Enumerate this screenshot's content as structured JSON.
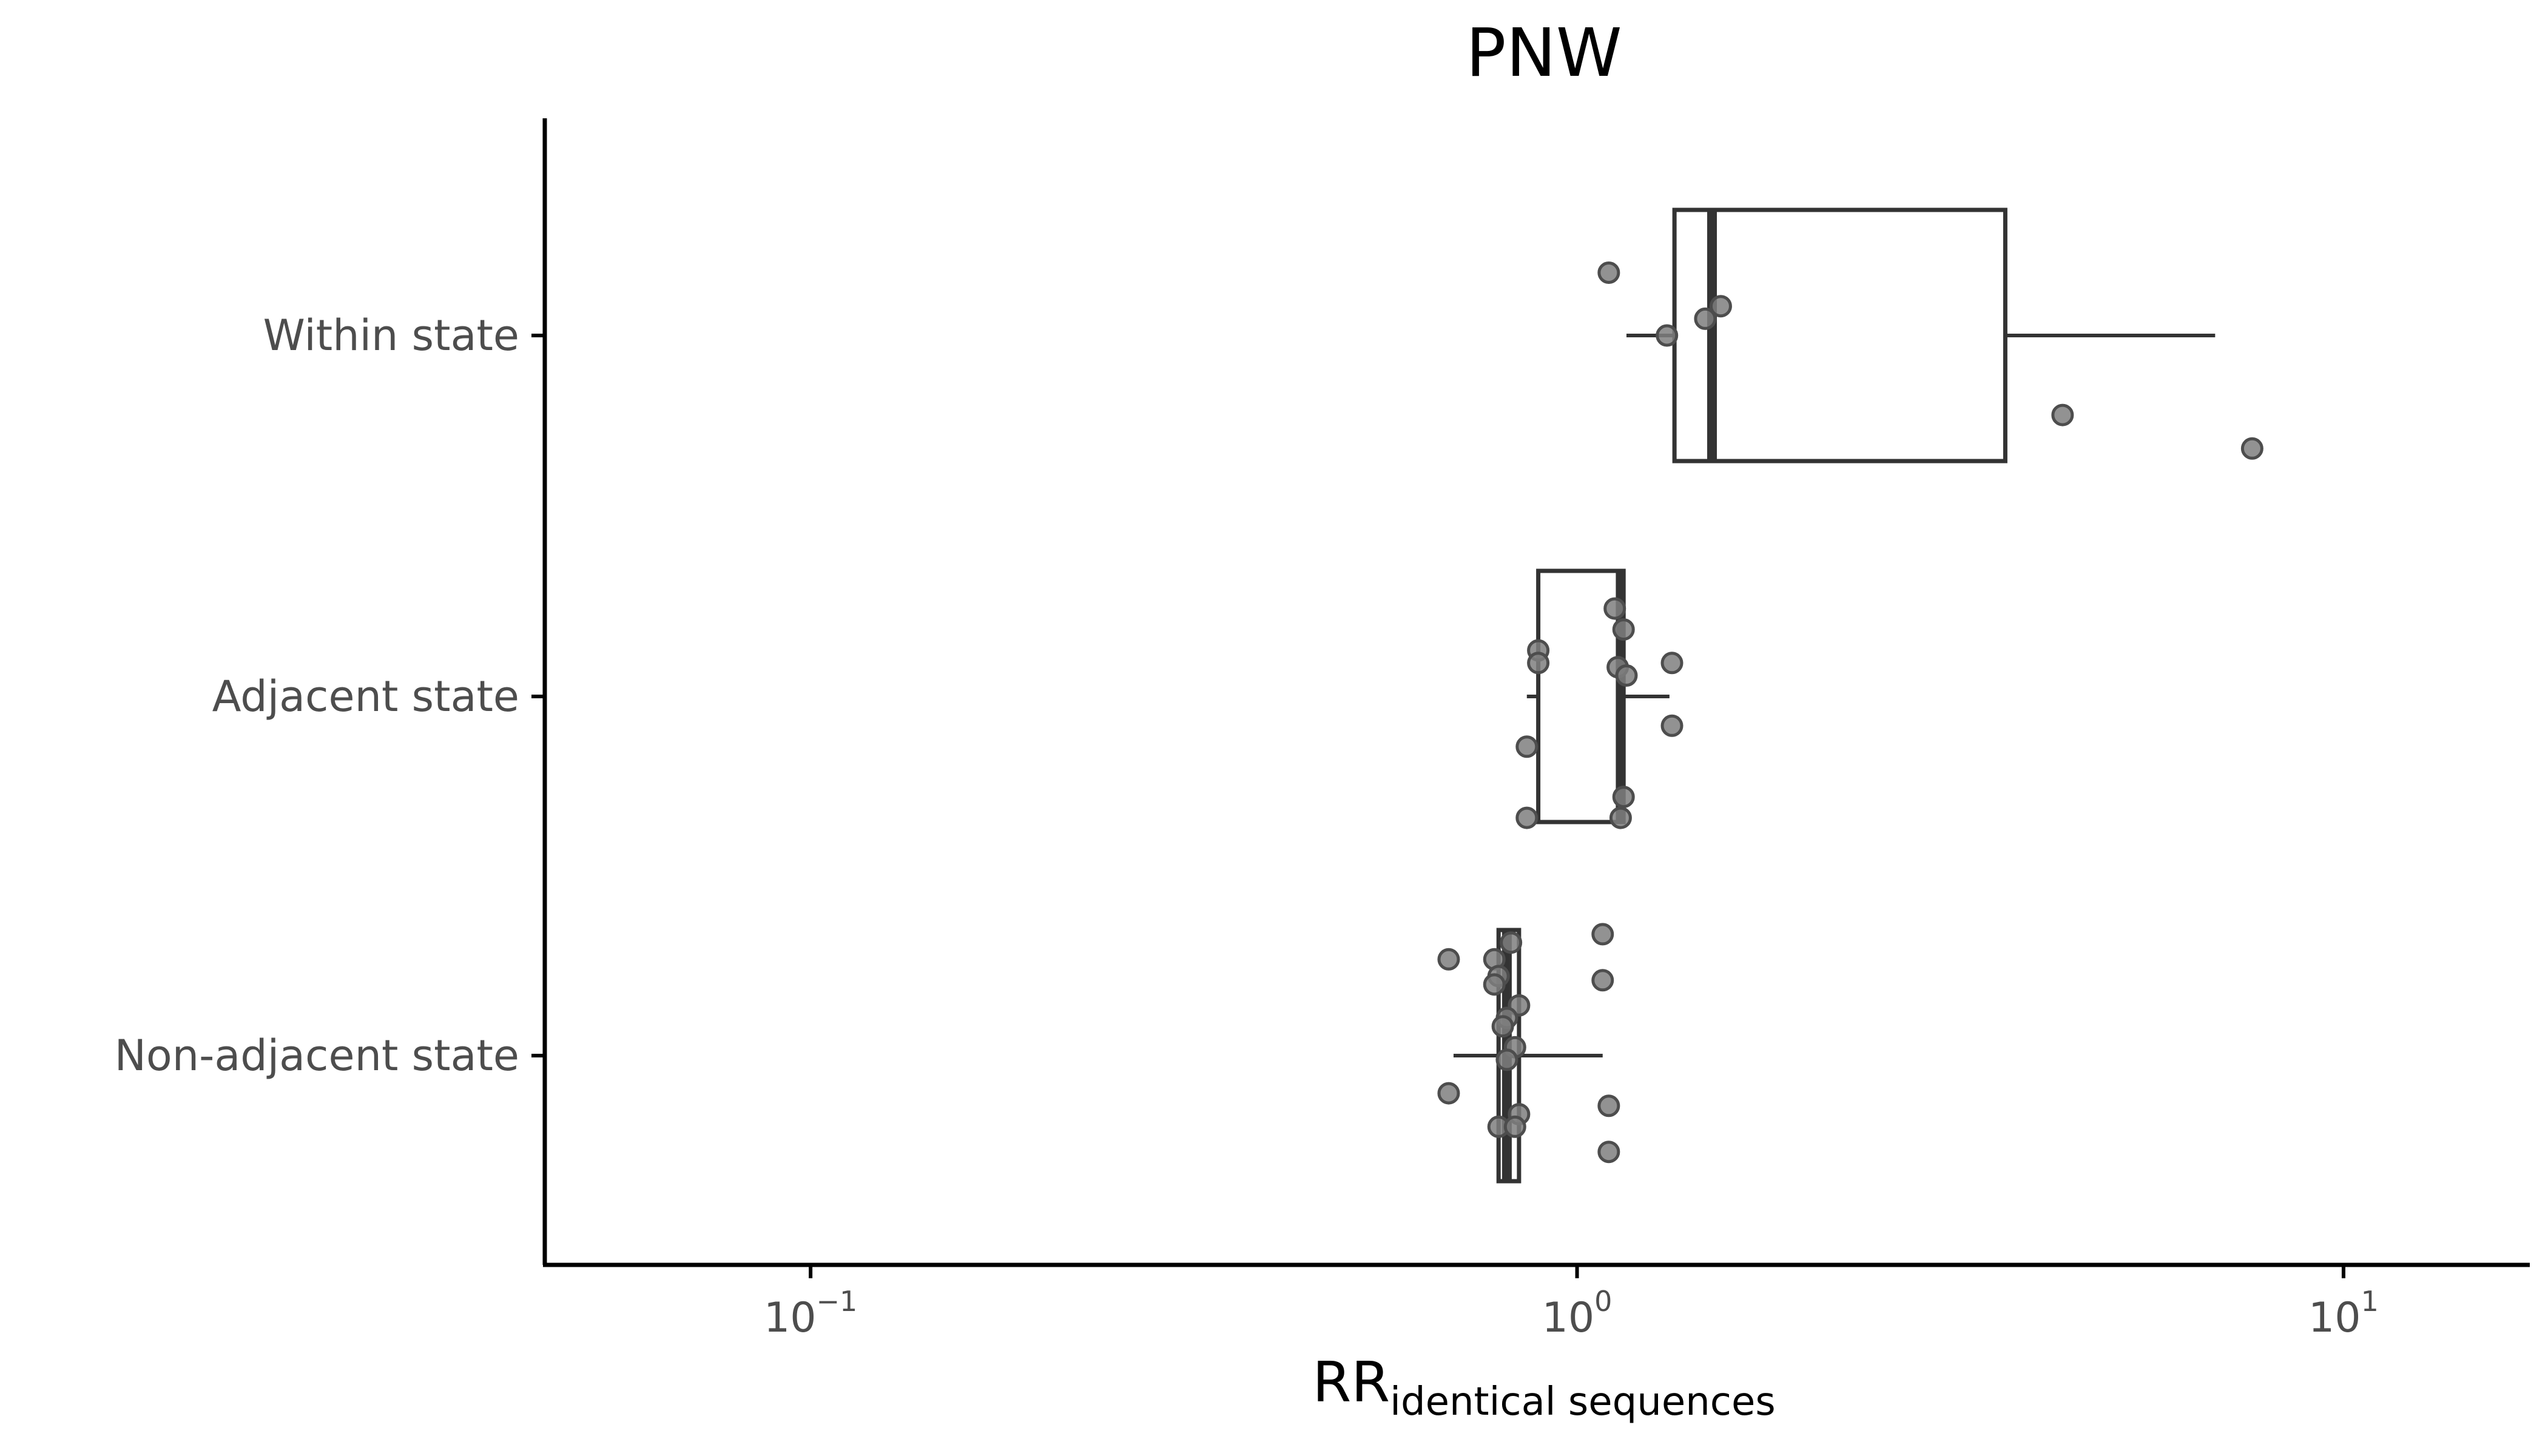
{
  "chart_data": {
    "type": "boxplot",
    "title": "PNW",
    "xlabel": {
      "main": "RR",
      "subscript": "identical sequences"
    },
    "xscale": "log",
    "xlim": [
      0.045,
      17.5
    ],
    "x_ticks": [
      {
        "value": 0.1,
        "base": "10",
        "exp": "−1"
      },
      {
        "value": 1,
        "base": "10",
        "exp": "0"
      },
      {
        "value": 10,
        "base": "10",
        "exp": "1"
      }
    ],
    "grid": false,
    "legend": "none",
    "colors": {
      "box_stroke": "#333333",
      "point_fill": "#7f7f7f",
      "point_stroke": "#4d4d4d",
      "axis": "#000000"
    },
    "categories": [
      "Within state",
      "Adjacent state",
      "Non-adjacent state"
    ],
    "boxes": [
      {
        "category": "Within state",
        "whisker_low": 1.16,
        "q1": 1.34,
        "median": 1.5,
        "q3": 3.62,
        "whisker_high": 6.8,
        "points": [
          {
            "x": 1.1,
            "jitter": 0.15
          },
          {
            "x": 1.31,
            "jitter": 0.0
          },
          {
            "x": 1.47,
            "jitter": 0.04
          },
          {
            "x": 1.54,
            "jitter": 0.07
          },
          {
            "x": 4.3,
            "jitter": -0.19
          },
          {
            "x": 7.6,
            "jitter": -0.27
          }
        ]
      },
      {
        "category": "Adjacent state",
        "whisker_low": 0.86,
        "q1": 0.89,
        "median": 1.14,
        "q3": 1.15,
        "whisker_high": 1.32,
        "points": [
          {
            "x": 1.12,
            "jitter": 0.21
          },
          {
            "x": 1.15,
            "jitter": 0.16
          },
          {
            "x": 0.89,
            "jitter": 0.11
          },
          {
            "x": 0.89,
            "jitter": 0.08
          },
          {
            "x": 1.13,
            "jitter": 0.07
          },
          {
            "x": 1.33,
            "jitter": 0.08
          },
          {
            "x": 1.16,
            "jitter": 0.05
          },
          {
            "x": 1.33,
            "jitter": -0.07
          },
          {
            "x": 0.86,
            "jitter": -0.12
          },
          {
            "x": 1.15,
            "jitter": -0.24
          },
          {
            "x": 0.86,
            "jitter": -0.29
          },
          {
            "x": 1.14,
            "jitter": -0.29
          }
        ]
      },
      {
        "category": "Non-adjacent state",
        "whisker_low": 0.69,
        "q1": 0.79,
        "median": 0.81,
        "q3": 0.84,
        "whisker_high": 1.08,
        "points": [
          {
            "x": 1.08,
            "jitter": 0.29
          },
          {
            "x": 0.82,
            "jitter": 0.27
          },
          {
            "x": 0.68,
            "jitter": 0.23
          },
          {
            "x": 0.78,
            "jitter": 0.23
          },
          {
            "x": 0.79,
            "jitter": 0.19
          },
          {
            "x": 0.78,
            "jitter": 0.17
          },
          {
            "x": 1.08,
            "jitter": 0.18
          },
          {
            "x": 0.84,
            "jitter": 0.12
          },
          {
            "x": 0.81,
            "jitter": 0.09
          },
          {
            "x": 0.8,
            "jitter": 0.07
          },
          {
            "x": 0.83,
            "jitter": 0.02
          },
          {
            "x": 0.81,
            "jitter": -0.01
          },
          {
            "x": 0.68,
            "jitter": -0.09
          },
          {
            "x": 1.1,
            "jitter": -0.12
          },
          {
            "x": 0.84,
            "jitter": -0.14
          },
          {
            "x": 0.79,
            "jitter": -0.17
          },
          {
            "x": 0.83,
            "jitter": -0.17
          },
          {
            "x": 1.1,
            "jitter": -0.23
          }
        ]
      }
    ]
  }
}
